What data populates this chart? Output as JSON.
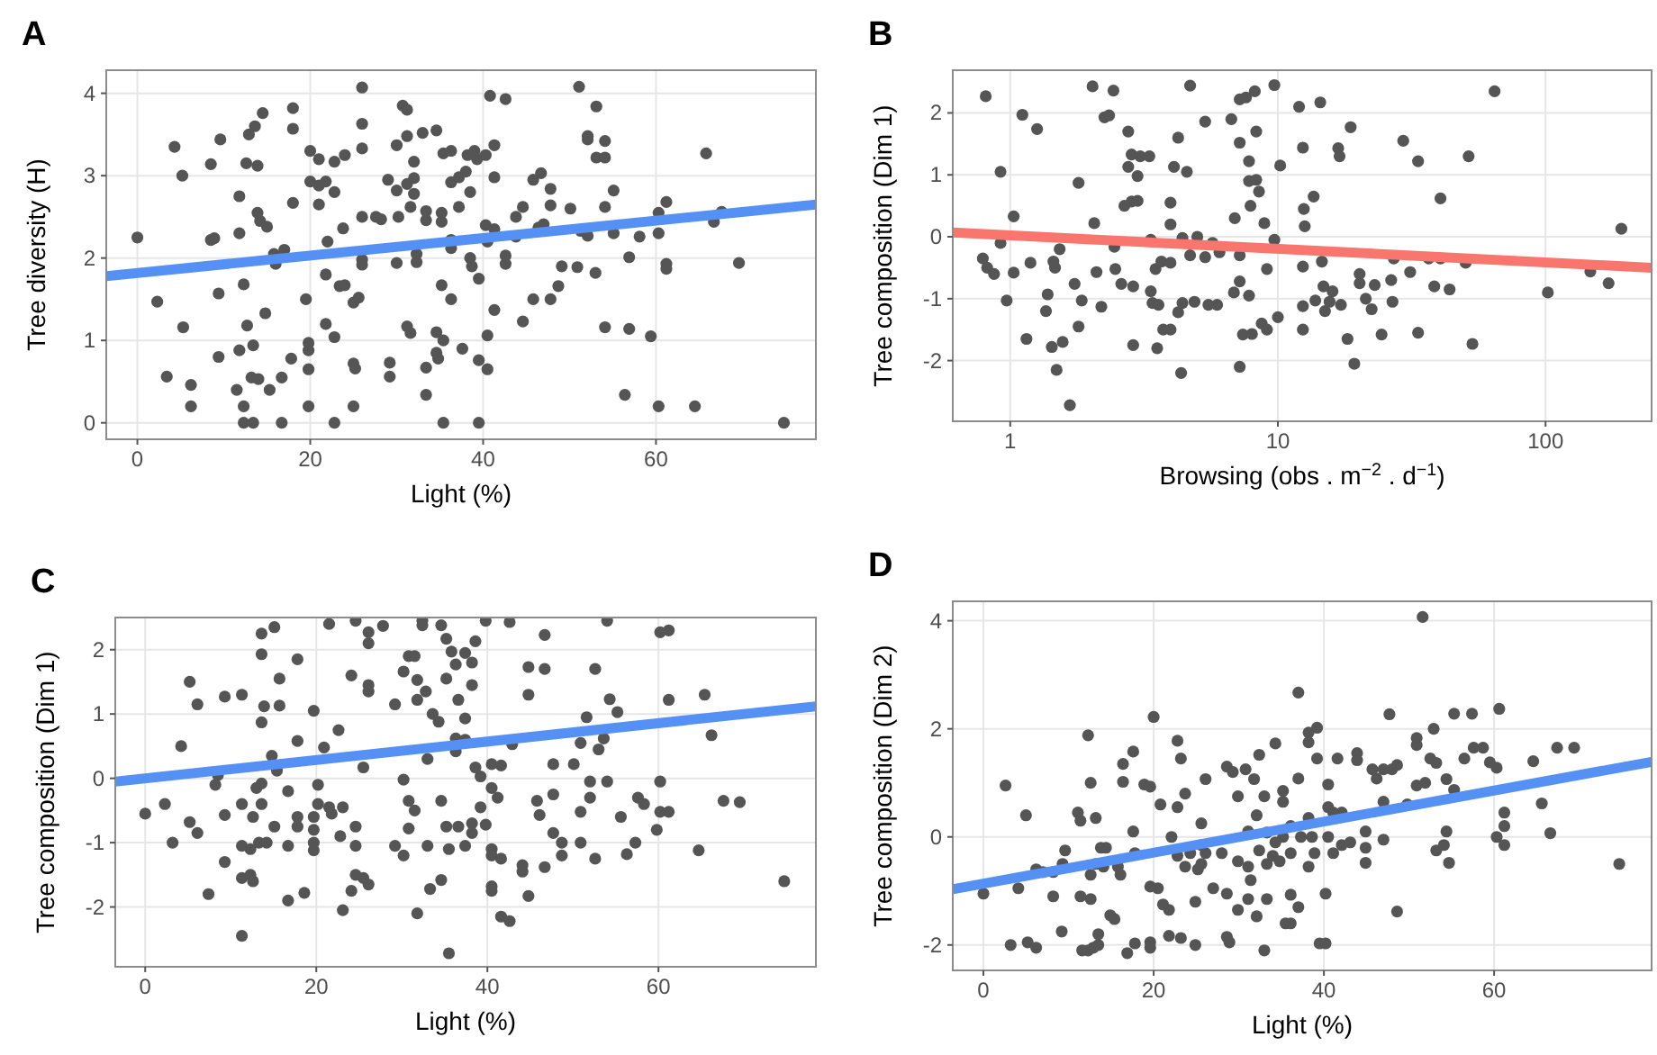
{
  "chart_data": [
    {
      "type": "scatter",
      "title": "A",
      "xlabel": "Light (%)",
      "ylabel": "Tree diversity (H)",
      "xlim": [
        -3.6,
        78.5
      ],
      "ylim": [
        -0.2,
        4.28
      ],
      "xticks": [
        0,
        20,
        40,
        60
      ],
      "yticks": [
        0,
        1,
        2,
        3,
        4
      ],
      "grid": true,
      "series": [
        {
          "type": "scatter",
          "marker": "circle",
          "color": "#555555",
          "x": [
            0,
            2.3,
            3.4,
            4.3,
            5.2,
            5.3,
            6.2,
            6.2,
            8.5,
            8.5,
            8.9,
            9.4,
            9.4,
            9.6,
            11.5,
            11.8,
            11.8,
            11.8,
            12.3,
            12.3,
            12.3,
            12.6,
            12.7,
            12.9,
            13.2,
            13.4,
            13.4,
            13.6,
            13.9,
            13.9,
            14,
            14.2,
            14.5,
            14.8,
            15,
            15.3,
            15.8,
            16,
            16.7,
            16.7,
            17,
            17.8,
            18,
            18,
            18,
            19.5,
            19.8,
            19.8,
            19.8,
            19.8,
            20,
            20,
            21,
            21,
            21,
            21.8,
            21.8,
            21.8,
            22,
            22.8,
            22.8,
            22.8,
            22.8,
            23.4,
            23.8,
            24,
            24,
            25,
            25,
            25,
            25.2,
            25.6,
            26,
            26,
            26,
            26,
            26,
            26,
            27.6,
            28.2,
            29,
            29.2,
            29.2,
            30,
            30,
            30,
            30.2,
            30.7,
            31.2,
            31.2,
            31.2,
            31.2,
            31.6,
            31.6,
            32,
            32,
            32,
            32.3,
            32.3,
            33,
            33.4,
            33.4,
            33.4,
            33.4,
            34.6,
            34.6,
            34.6,
            34.8,
            35.2,
            35.2,
            35.2,
            35.4,
            35.4,
            35.4,
            36.3,
            36.3,
            36.3,
            36.3,
            36.3,
            37.2,
            37.2,
            37.6,
            38,
            38.2,
            38.5,
            38.5,
            38.7,
            39,
            39.3,
            39.5,
            39.5,
            39.5,
            40.3,
            40.3,
            40.5,
            40.5,
            40.5,
            40.8,
            41.3,
            41.3,
            41.3,
            41.3,
            42.6,
            42.6,
            42.6,
            43.8,
            43.8,
            44.6,
            44.6,
            45.8,
            45.8,
            46.7,
            47.0,
            46.4,
            47.8,
            47.8,
            47.8,
            48.7,
            49.1,
            50.1,
            50.9,
            51.1,
            51.3,
            52.1,
            52.1,
            52.1,
            53,
            53.1,
            53.1,
            54.1,
            54.1,
            54.1,
            54.1,
            55.1,
            55.1,
            56.4,
            56.9,
            56.9,
            58.1,
            59.4,
            60.3,
            60.3,
            60.3,
            61.2,
            61.2,
            61.2,
            64.5,
            65.8,
            66.7,
            67.6,
            69.6,
            74.8
          ],
          "values": [
            2.25,
            1.47,
            0.56,
            3.35,
            3.0,
            1.16,
            0.46,
            0.2,
            3.14,
            2.22,
            2.24,
            0.8,
            1.57,
            3.44,
            0.4,
            0.88,
            2.75,
            2.3,
            1.68,
            0.2,
            0,
            3.15,
            1.18,
            3.5,
            0.55,
            0.94,
            0,
            3.6,
            3.12,
            2.55,
            0.53,
            2.45,
            3.76,
            1.33,
            2.38,
            0.4,
            2.05,
            1.93,
            0.55,
            0,
            2.1,
            0.78,
            3.82,
            3.57,
            2.67,
            1.5,
            0.88,
            0.97,
            0.65,
            0.2,
            3.3,
            2.93,
            3.2,
            2.88,
            2.65,
            2.93,
            1.8,
            1.2,
            2.2,
            3.17,
            2.8,
            1.04,
            0,
            1.66,
            2.36,
            3.25,
            1.67,
            1.46,
            0.72,
            0.2,
            0.66,
            1.52,
            4.07,
            3.63,
            3.33,
            2.5,
            1.98,
            1.92,
            2.5,
            2.47,
            2.95,
            0.73,
            0.56,
            3.37,
            1.94,
            2.82,
            2.5,
            3.85,
            3.8,
            2.9,
            1.17,
            3.48,
            1.09,
            2.62,
            3.17,
            2.97,
            2.78,
            2.05,
            1.95,
            3.52,
            2.57,
            2.46,
            0.67,
            0.34,
            3.55,
            1.1,
            0.85,
            0.78,
            2.55,
            2.44,
            1.67,
            3.27,
            1.0,
            0,
            3.3,
            2.22,
            2.12,
            1.5,
            2.92,
            2.98,
            2.62,
            0.9,
            3.05,
            3.25,
            2.8,
            2.0,
            1.9,
            3.3,
            3.2,
            1.75,
            0.76,
            0,
            3.25,
            2.4,
            2.2,
            1.06,
            0.65,
            3.97,
            3.37,
            2.98,
            2.35,
            1.37,
            3.93,
            2.03,
            1.93,
            2.5,
            2.26,
            2.62,
            1.23,
            2.95,
            1.5,
            3.03,
            2.41,
            2.37,
            2.84,
            2.64,
            1.5,
            1.66,
            1.9,
            2.6,
            1.89,
            4.08,
            2.33,
            3.48,
            3.44,
            2.27,
            1.82,
            3.84,
            3.22,
            3.42,
            3.22,
            2.62,
            1.16,
            2.82,
            2.3,
            0.34,
            2.01,
            1.14,
            2.26,
            1.05,
            2.55,
            2.3,
            0.2,
            2.68,
            1.93,
            1.87,
            0.2,
            3.27,
            2.44,
            2.56,
            1.94,
            0
          ]
        },
        {
          "type": "line",
          "color": "#5591f5",
          "x": [
            -3.6,
            78.5
          ],
          "values": [
            1.78,
            2.65
          ]
        }
      ]
    },
    {
      "type": "scatter",
      "title": "B",
      "xlabel": "Browsing (obs . m$^{−2}$ . d$^{−1}$)",
      "ylabel": "Tree composition (Dim 1)",
      "log": "x",
      "xlim": [
        0.61,
        249
      ],
      "ylim": [
        -2.98,
        2.69
      ],
      "xticks": [
        1,
        10,
        100
      ],
      "yticks": [
        -2,
        -1,
        0,
        1,
        2
      ],
      "grid": true,
      "series": [
        {
          "type": "scatter",
          "marker": "circle",
          "color": "#555555",
          "x": [
            0.81,
            0.79,
            0.82,
            0.87,
            0.92,
            0.92,
            0.97,
            1.03,
            1.03,
            1.11,
            1.15,
            1.19,
            1.26,
            1.38,
            1.36,
            1.45,
            1.47,
            1.43,
            1.49,
            1.53,
            1.57,
            1.67,
            1.74,
            1.8,
            1.8,
            1.85,
            2.03,
            2.06,
            2.1,
            2.19,
            2.25,
            2.34,
            2.43,
            2.45,
            2.47,
            2.6,
            2.67,
            2.76,
            2.76,
            2.84,
            2.84,
            2.88,
            2.88,
            2.99,
            2.99,
            3.06,
            3.31,
            3.35,
            3.35,
            3.4,
            3.49,
            3.54,
            3.58,
            3.67,
            3.73,
            3.97,
            3.97,
            3.97,
            3.97,
            4.09,
            4.24,
            4.24,
            4.35,
            4.4,
            4.4,
            4.57,
            4.7,
            4.7,
            4.88,
            5.0,
            5.35,
            5.35,
            5.5,
            5.7,
            5.93,
            6.05,
            6.7,
            6.9,
            6.85,
            7.2,
            7.2,
            7.2,
            7.2,
            7.2,
            7.4,
            7.6,
            7.8,
            7.8,
            7.8,
            7.9,
            8.0,
            8.2,
            8.3,
            8.3,
            8.5,
            8.7,
            8.9,
            9.1,
            9.1,
            9.7,
            9.7,
            10,
            10.2,
            12.0,
            12.4,
            12.5,
            12.6,
            12.4,
            12.4,
            12.4,
            13.6,
            13.8,
            14.4,
            14.6,
            14.8,
            15.0,
            15.6,
            16.0,
            16.8,
            17.0,
            17.2,
            18.2,
            18.7,
            19.3,
            20.2,
            20.2,
            21.3,
            22.4,
            23,
            24.4,
            26.5,
            26.8,
            27.1,
            29.4,
            31.2,
            33.4,
            33.4,
            36.6,
            38.4,
            40.5,
            40.5,
            43.8,
            50.3,
            51.6,
            53.3,
            64.5,
            102,
            147,
            172,
            192
          ],
          "values": [
            2.27,
            -0.35,
            -0.5,
            -0.6,
            1.05,
            -0.1,
            -1.03,
            0.33,
            -0.58,
            1.97,
            -1.65,
            -0.42,
            1.74,
            -0.93,
            -1.2,
            -0.4,
            -0.5,
            -1.78,
            -2.15,
            -0.2,
            -1.7,
            -2.72,
            -0.76,
            0.87,
            -1.45,
            -1.03,
            2.43,
            0.22,
            -0.57,
            -1.13,
            1.93,
            1.96,
            2.36,
            -0.16,
            -0.52,
            -0.76,
            0.5,
            1.7,
            1.13,
            1.33,
            0.57,
            -0.8,
            -1.75,
            0.98,
            0.58,
            1.3,
            1.3,
            -0.05,
            -0.88,
            -1.07,
            -0.52,
            -1.8,
            -1.1,
            -0.4,
            -1.5,
            0.55,
            0.2,
            -0.42,
            -1.5,
            1.13,
            1.6,
            -1.22,
            -2.2,
            -0.02,
            -1.07,
            1.05,
            2.44,
            -0.3,
            -1.05,
            0.0,
            1.86,
            -0.33,
            -1.1,
            -0.1,
            -1.1,
            -0.25,
            1.9,
            0.3,
            -0.9,
            2.22,
            1.52,
            -0.3,
            -0.72,
            -2.1,
            -1.58,
            2.25,
            1.22,
            0.9,
            -0.95,
            0.5,
            -1.57,
            2.35,
            1.7,
            0.92,
            0.73,
            -1.4,
            0.22,
            -1.5,
            -0.52,
            2.45,
            -0.05,
            -1.3,
            1.15,
            2.1,
            1.44,
            0.45,
            0.17,
            -0.48,
            -1.12,
            -1.5,
            0.65,
            -1.03,
            2.17,
            -0.4,
            -0.8,
            -1.2,
            -1.05,
            -0.88,
            1.43,
            1.3,
            -1.1,
            -1.65,
            1.77,
            -2.05,
            -0.6,
            -0.75,
            -1.0,
            -1.17,
            -0.78,
            -1.58,
            -0.7,
            -1.05,
            -0.35,
            1.55,
            -0.57,
            1.22,
            -1.55,
            -0.35,
            -0.8,
            0.62,
            -0.35,
            -0.85,
            -0.42,
            1.3,
            -1.73,
            2.35,
            -0.9,
            -0.56,
            -0.75,
            0.13
          ]
        },
        {
          "type": "line",
          "color": "#f8766d",
          "x": [
            0.61,
            249
          ],
          "values": [
            0.07,
            -0.5
          ]
        }
      ]
    },
    {
      "type": "scatter",
      "title": "C",
      "xlabel": "Light (%)",
      "ylabel": "Tree composition (Dim 1)",
      "xlim": [
        -3.5,
        78.4
      ],
      "ylim": [
        -2.93,
        2.5
      ],
      "xticks": [
        0,
        20,
        40,
        60
      ],
      "yticks": [
        -2,
        -1,
        0,
        1,
        2
      ],
      "grid": true,
      "series": [
        {
          "type": "scatter",
          "marker": "circle",
          "color": "#555555",
          "x": [
            0,
            2.3,
            3.2,
            4.2,
            5.2,
            5.2,
            6.1,
            6.1,
            7.4,
            8.2,
            8.5,
            9.3,
            9.3,
            9.3,
            11.3,
            11.3,
            11.3,
            11.3,
            11.3,
            12.3,
            12.3,
            12.6,
            12.6,
            13.0,
            13.3,
            13.6,
            13.6,
            13.6,
            13.6,
            13.6,
            13.9,
            14.2,
            14.8,
            15.1,
            15.1,
            15.4,
            15.7,
            15.7,
            16.7,
            16.7,
            16.7,
            17.8,
            17.8,
            17.8,
            17.8,
            18.6,
            19.7,
            19.7,
            19.7,
            19.7,
            19.7,
            20.2,
            20.2,
            20.9,
            21.5,
            21.5,
            21.8,
            22.6,
            22.8,
            23.1,
            23.1,
            24.1,
            24.1,
            24.6,
            24.6,
            24.6,
            24.6,
            25.5,
            25.5,
            26.1,
            26.1,
            26.1,
            26.1,
            26.1,
            27.8,
            29.2,
            29.2,
            30.2,
            30.2,
            30.2,
            30.8,
            30.8,
            30.8,
            31.5,
            31.5,
            31.8,
            31.8,
            31.8,
            32.4,
            32.4,
            32.8,
            33.0,
            33.0,
            33.3,
            33.6,
            34.3,
            34.6,
            34.6,
            34.6,
            35.2,
            35.2,
            35.2,
            35.5,
            35.5,
            35.8,
            36.3,
            36.3,
            36.3,
            36.6,
            36.6,
            37.4,
            37.4,
            37.4,
            37.4,
            38.2,
            38.2,
            38.2,
            38.2,
            38.6,
            38.6,
            39.2,
            39.2,
            39.8,
            39.8,
            40.5,
            40.5,
            40.5,
            40.5,
            40.5,
            40.5,
            41.2,
            41.6,
            41.6,
            41.6,
            42.6,
            42.6,
            42.9,
            44.1,
            44.1,
            44.8,
            44.8,
            44.8,
            45.8,
            46.1,
            46.7,
            46.7,
            46.7,
            47.7,
            47.7,
            47.7,
            48.7,
            48.7,
            50.1,
            50.9,
            50.9,
            50.9,
            51.6,
            52.0,
            52.0,
            52.6,
            52.6,
            53.0,
            53.6,
            54.0,
            54.0,
            54.3,
            55.2,
            55.6,
            56.3,
            57.3,
            57.6,
            58.3,
            59.8,
            60.2,
            60.2,
            60.2,
            61.2,
            61.2,
            61.2,
            64.7,
            65.4,
            66.2,
            67.6,
            69.5,
            74.7
          ],
          "values": [
            -0.55,
            -0.4,
            -1.0,
            0.5,
            1.5,
            -0.68,
            1.15,
            -0.85,
            -1.8,
            -0.1,
            0.05,
            1.27,
            -0.57,
            -1.3,
            1.3,
            -0.4,
            -1.05,
            -1.55,
            -2.45,
            -1.1,
            -1.5,
            -0.6,
            -1.6,
            -0.15,
            -1.0,
            2.25,
            1.93,
            0.87,
            -0.4,
            -0.08,
            1.12,
            -1.0,
            0.35,
            2.35,
            -0.75,
            0.12,
            1.55,
            1.13,
            -0.2,
            -1.05,
            -1.9,
            1.85,
            0.58,
            -0.6,
            -0.75,
            -1.78,
            1.05,
            -0.6,
            -0.8,
            -1.0,
            -1.12,
            -0.1,
            -0.4,
            0.48,
            2.4,
            -0.45,
            -0.55,
            0.75,
            -0.9,
            -2.05,
            -0.45,
            1.6,
            -1.75,
            2.45,
            -0.75,
            -1.05,
            -1.5,
            0.17,
            -1.55,
            2.27,
            2.1,
            1.45,
            1.35,
            -1.65,
            2.37,
            1.15,
            -1.05,
            -0.02,
            1.66,
            -1.2,
            1.9,
            -0.35,
            -0.78,
            1.9,
            -0.5,
            1.53,
            1.22,
            -2.1,
            2.45,
            2.38,
            1.35,
            0.3,
            -1.05,
            -1.72,
            1.0,
            0.88,
            2.38,
            -0.35,
            -1.58,
            2.17,
            1.55,
            -0.75,
            -1.1,
            -2.72,
            1.97,
            1.77,
            0.62,
            0.42,
            1.22,
            -0.75,
            1.95,
            0.93,
            0.6,
            -1.05,
            1.8,
            1.45,
            -0.7,
            -0.85,
            2.13,
            0.17,
            0.03,
            -0.45,
            2.45,
            -0.72,
            0.22,
            -0.15,
            -1.1,
            -1.2,
            -1.68,
            -1.75,
            -0.3,
            0.2,
            -1.25,
            -2.15,
            2.43,
            -2.22,
            0.53,
            -1.35,
            -1.45,
            1.73,
            1.3,
            -1.83,
            -0.35,
            -0.57,
            2.23,
            1.7,
            -1.38,
            0.22,
            -0.25,
            -0.85,
            -1.0,
            -1.2,
            0.22,
            0.55,
            -0.52,
            -1.0,
            0.95,
            -0.05,
            -0.3,
            1.7,
            -1.25,
            0.45,
            0.62,
            2.45,
            -0.05,
            1.23,
            1.03,
            -0.6,
            -1.18,
            -1.0,
            -0.3,
            -0.4,
            -0.8,
            2.27,
            -0.05,
            -0.52,
            2.3,
            1.22,
            -0.52,
            -1.12,
            1.3,
            0.67,
            -0.35,
            -0.37,
            -1.6
          ]
        },
        {
          "type": "line",
          "color": "#5591f5",
          "x": [
            -3.5,
            78.4
          ],
          "values": [
            -0.05,
            1.12
          ]
        }
      ]
    },
    {
      "type": "scatter",
      "title": "D",
      "xlabel": "Light (%)",
      "ylabel": "Tree composition (Dim 2)",
      "xlim": [
        -3.6,
        78.5
      ],
      "ylim": [
        -2.47,
        4.36
      ],
      "xticks": [
        0,
        20,
        40,
        60
      ],
      "yticks": [
        -2,
        0,
        2,
        4
      ],
      "grid": true,
      "series": [
        {
          "type": "scatter",
          "marker": "circle",
          "color": "#555555",
          "x": [
            0,
            2.6,
            3.2,
            4.1,
            5.0,
            5.2,
            6.2,
            6.2,
            7.0,
            8.2,
            8.2,
            9.2,
            9.3,
            9.6,
            11.1,
            11.4,
            11.4,
            11.6,
            12.3,
            12.3,
            12.6,
            12.6,
            12.6,
            12.9,
            13.2,
            13.2,
            13.5,
            13.5,
            13.8,
            14.1,
            14.4,
            14.9,
            15.4,
            15.8,
            16.1,
            16.4,
            16.4,
            16.9,
            17.6,
            17.6,
            17.8,
            17.8,
            18.9,
            19.6,
            19.6,
            19.6,
            19.6,
            20,
            20.5,
            20.8,
            21.1,
            21.8,
            21.8,
            22.1,
            22.8,
            22.8,
            22.8,
            23.2,
            23.2,
            23.7,
            23.7,
            24.3,
            24.9,
            24.9,
            25.2,
            25.6,
            25.6,
            25.6,
            26.1,
            26.1,
            27.0,
            28.0,
            28.6,
            28.6,
            28.6,
            28.9,
            29.3,
            29.9,
            29.9,
            29.9,
            30.8,
            31.1,
            31.1,
            31.1,
            31.4,
            31.8,
            32.1,
            32.1,
            32.4,
            32.4,
            33.0,
            33.0,
            33.3,
            33.3,
            33.3,
            34.0,
            34.3,
            34.3,
            34.8,
            35.2,
            35.2,
            35.2,
            35.5,
            36.1,
            36.1,
            36.1,
            36.1,
            37.0,
            37.0,
            37.0,
            37.3,
            38.2,
            38.2,
            38.2,
            38.2,
            38.6,
            38.9,
            39.2,
            39.2,
            39.5,
            40.2,
            40.2,
            40.5,
            40.5,
            40.5,
            41.1,
            41.1,
            41.6,
            42.1,
            42.1,
            43.1,
            43.9,
            43.9,
            44.9,
            44.9,
            44.9,
            45.7,
            46.2,
            47.0,
            47.0,
            47.0,
            47.7,
            48.0,
            48.6,
            48.6,
            49.8,
            50.9,
            50.9,
            50.9,
            51.6,
            51.9,
            52.5,
            52.9,
            53.2,
            53.2,
            54.1,
            54.4,
            54.4,
            54.7,
            55.3,
            55.3,
            56.5,
            57.4,
            57.6,
            58.7,
            59.5,
            60.3,
            60.3,
            60.6,
            61.2,
            61.2,
            61.2,
            64.6,
            65.6,
            66.6,
            67.4,
            69.4,
            74.7
          ],
          "values": [
            -1.05,
            0.95,
            -2.0,
            -0.95,
            0.4,
            -1.95,
            -2.05,
            -0.6,
            -0.65,
            -1.1,
            -0.65,
            -1.75,
            -0.5,
            -0.25,
            0.45,
            0.3,
            -1.1,
            -2.1,
            1.88,
            -2.1,
            1.0,
            -0.7,
            -1.15,
            -2.05,
            0.35,
            -0.5,
            -2.0,
            -1.8,
            -0.2,
            -0.55,
            -0.2,
            -1.45,
            -1.52,
            -0.55,
            -0.7,
            1.35,
            1.02,
            -2.15,
            1.58,
            0.1,
            -0.3,
            -1.97,
            0.97,
            0.93,
            -0.92,
            -1.95,
            -2.05,
            2.22,
            -0.95,
            0.6,
            -1.25,
            -1.35,
            -1.83,
            0.0,
            1.78,
            0.55,
            -0.35,
            1.45,
            -1.87,
            0.8,
            -0.55,
            -0.3,
            -2.0,
            -1.2,
            -0.6,
            0.25,
            -0.15,
            -0.5,
            1.07,
            -0.3,
            -0.95,
            -0.3,
            1.3,
            -1.05,
            -1.85,
            -1.95,
            1.2,
            0.75,
            -0.45,
            -1.35,
            1.25,
            0.1,
            -0.55,
            -1.15,
            -0.8,
            1.07,
            0.4,
            -1.47,
            -0.25,
            1.52,
            0.75,
            -2.1,
            0.08,
            -0.5,
            -1.15,
            -0.35,
            1.73,
            -0.1,
            -0.45,
            0.85,
            0.65,
            0.0,
            -1.6,
            0.2,
            -0.3,
            -1.07,
            -1.6,
            2.67,
            1.08,
            -1.3,
            0.0,
            1.93,
            1.75,
            0.35,
            -0.55,
            0.0,
            -0.3,
            2.02,
            1.45,
            -1.97,
            -1.97,
            -1.05,
            0.97,
            0.55,
            0.0,
            0.45,
            -0.3,
            1.45,
            0.45,
            -0.15,
            -0.1,
            1.55,
            1.42,
            0.1,
            -0.2,
            -0.48,
            1.25,
            1.08,
            1.25,
            0.65,
            -0.05,
            2.27,
            1.25,
            1.33,
            -1.38,
            0.6,
            1.83,
            1.7,
            0.95,
            4.07,
            1.0,
            1.45,
            2.0,
            1.37,
            -0.25,
            -0.15,
            1.07,
            0.1,
            -0.48,
            0.87,
            2.28,
            1.45,
            2.28,
            1.65,
            1.65,
            1.38,
            1.28,
            0.0,
            2.37,
            0.45,
            0.2,
            -0.15,
            1.4,
            0.62,
            0.07,
            1.65,
            1.65,
            -0.5
          ]
        },
        {
          "type": "line",
          "color": "#5591f5",
          "x": [
            -3.6,
            78.5
          ],
          "values": [
            -0.97,
            1.39
          ]
        }
      ]
    }
  ]
}
